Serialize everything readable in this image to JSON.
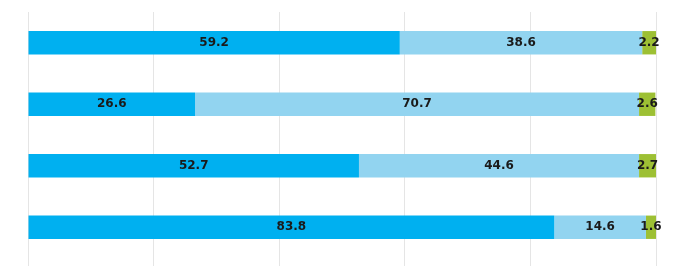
{
  "chart_data": {
    "type": "bar",
    "orientation": "horizontal",
    "stacked": true,
    "categories": [
      null,
      null,
      null,
      null
    ],
    "series": [
      {
        "color": "#00b0f0",
        "values": [
          59.2,
          26.6,
          52.7,
          83.8
        ]
      },
      {
        "color": "#92d4f0",
        "values": [
          38.6,
          70.7,
          44.6,
          14.6
        ]
      },
      {
        "color": "#9dc034",
        "values": [
          2.2,
          2.6,
          2.7,
          1.6
        ]
      }
    ],
    "xlim": [
      0,
      100
    ],
    "xticks": [
      0,
      20,
      40,
      60,
      80,
      100
    ],
    "grid": true,
    "data_labels": true,
    "tick_labels": false
  }
}
